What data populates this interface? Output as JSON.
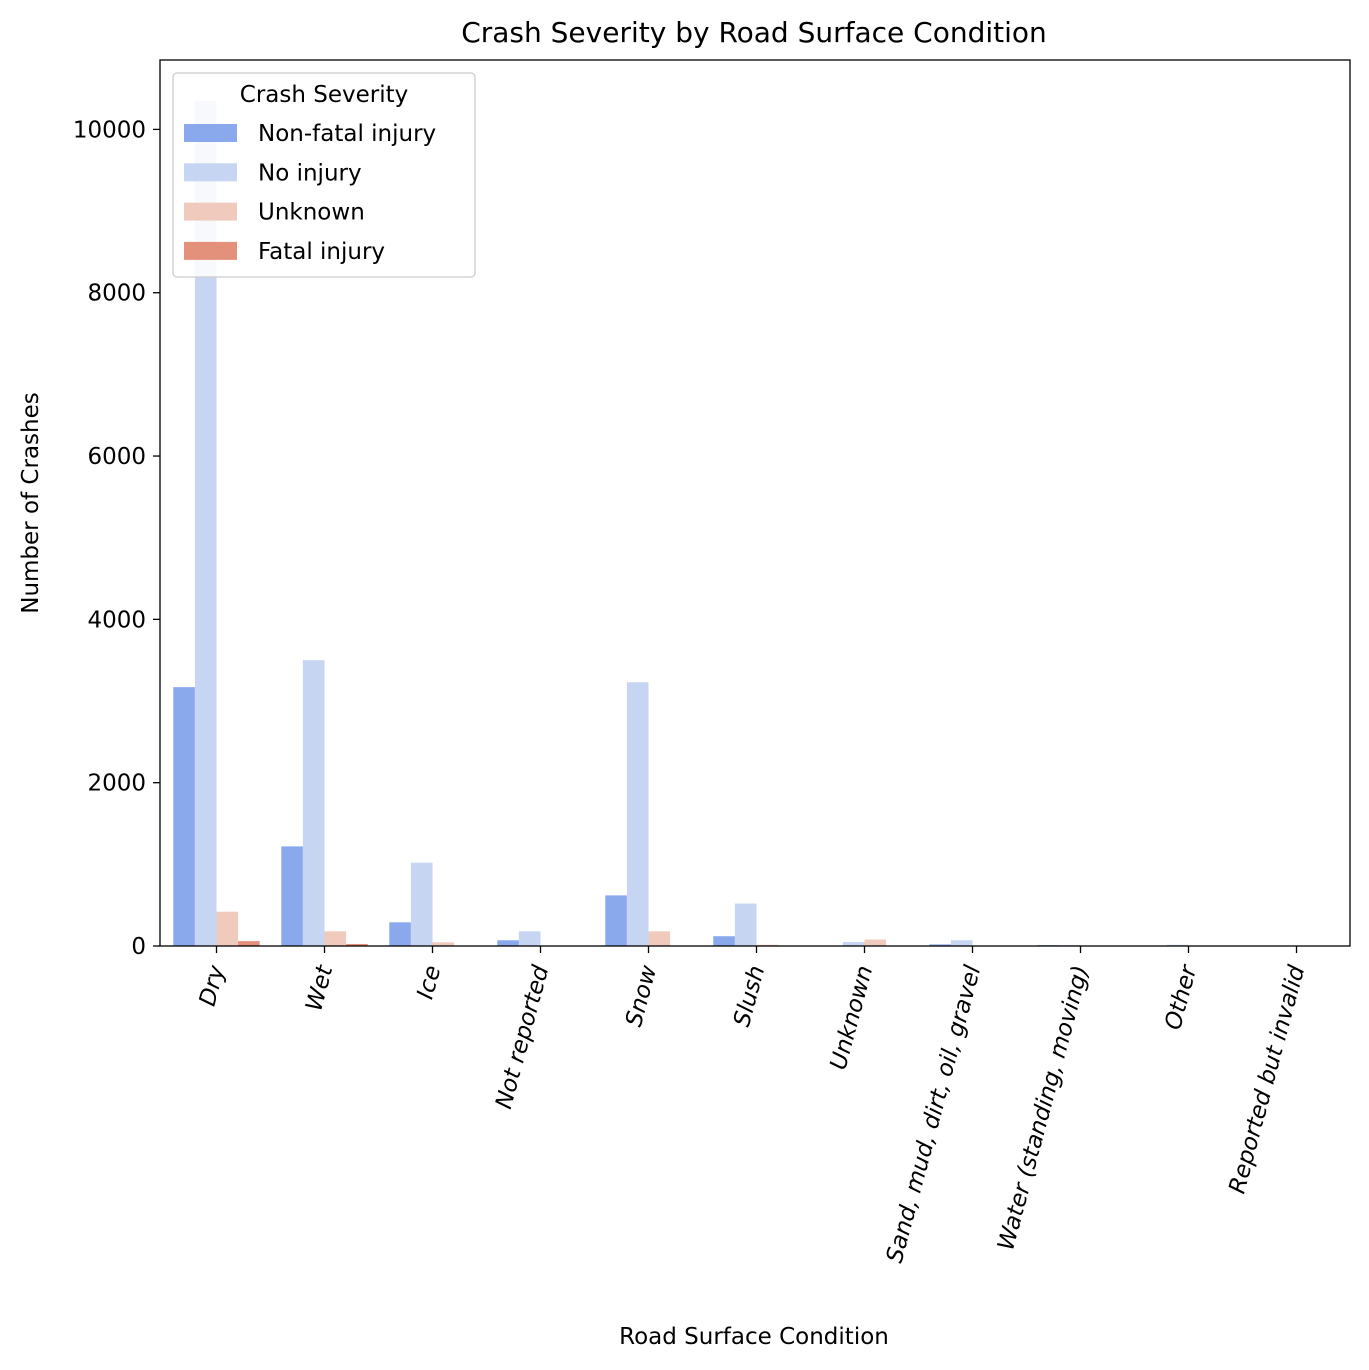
{
  "chart_data": {
    "type": "bar",
    "title": "Crash Severity by Road Surface Condition",
    "xlabel": "Road Surface Condition",
    "ylabel": "Number of Crashes",
    "ylim": [
      0,
      10850
    ],
    "yticks": [
      0,
      2000,
      4000,
      6000,
      8000,
      10000
    ],
    "grid": false,
    "categories": [
      "Dry",
      "Wet",
      "Ice",
      "Not reported",
      "Snow",
      "Slush",
      "Unknown",
      "Sand, mud, dirt, oil, gravel",
      "Water (standing, moving)",
      "Other",
      "Reported but invalid"
    ],
    "series": [
      {
        "name": "Non-fatal injury",
        "color": "#8aa9ec",
        "values": [
          3170,
          1220,
          290,
          70,
          620,
          120,
          5,
          20,
          10,
          5,
          0
        ]
      },
      {
        "name": "No injury",
        "color": "#c6d5f1",
        "values": [
          10350,
          3500,
          1020,
          180,
          3230,
          520,
          50,
          70,
          10,
          15,
          0
        ]
      },
      {
        "name": "Unknown",
        "color": "#f0cbbd",
        "values": [
          420,
          180,
          45,
          0,
          180,
          15,
          80,
          5,
          0,
          0,
          0
        ]
      },
      {
        "name": "Fatal injury",
        "color": "#e3917a",
        "values": [
          60,
          25,
          0,
          0,
          0,
          0,
          0,
          0,
          0,
          0,
          0
        ]
      }
    ],
    "legend": {
      "title": "Crash Severity",
      "placement": "top-left"
    }
  }
}
